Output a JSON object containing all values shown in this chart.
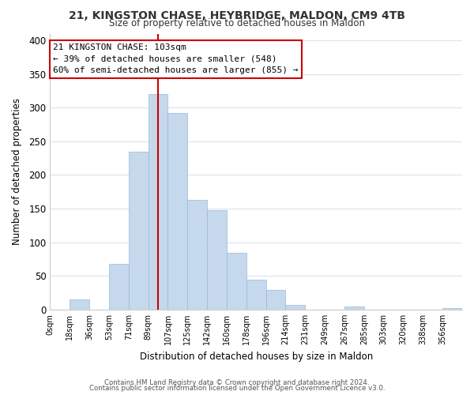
{
  "title1": "21, KINGSTON CHASE, HEYBRIDGE, MALDON, CM9 4TB",
  "title2": "Size of property relative to detached houses in Maldon",
  "xlabel": "Distribution of detached houses by size in Maldon",
  "ylabel": "Number of detached properties",
  "footer1": "Contains HM Land Registry data © Crown copyright and database right 2024.",
  "footer2": "Contains public sector information licensed under the Open Government Licence v3.0.",
  "bar_labels": [
    "0sqm",
    "18sqm",
    "36sqm",
    "53sqm",
    "71sqm",
    "89sqm",
    "107sqm",
    "125sqm",
    "142sqm",
    "160sqm",
    "178sqm",
    "196sqm",
    "214sqm",
    "231sqm",
    "249sqm",
    "267sqm",
    "285sqm",
    "303sqm",
    "320sqm",
    "338sqm",
    "356sqm"
  ],
  "bar_values": [
    0,
    15,
    0,
    68,
    235,
    320,
    292,
    163,
    148,
    84,
    44,
    29,
    7,
    0,
    0,
    5,
    0,
    0,
    0,
    0,
    2
  ],
  "bar_color": "#c5d8ec",
  "bar_edge_color": "#9ab8d4",
  "vline_x": 5.5,
  "vline_color": "#cc0000",
  "annotation_title": "21 KINGSTON CHASE: 103sqm",
  "annotation_line1": "← 39% of detached houses are smaller (548)",
  "annotation_line2": "60% of semi-detached houses are larger (855) →",
  "annotation_box_color": "#ffffff",
  "annotation_box_edge": "#cc0000",
  "ylim": [
    0,
    410
  ],
  "yticks": [
    0,
    50,
    100,
    150,
    200,
    250,
    300,
    350,
    400
  ],
  "background_color": "#ffffff",
  "grid_color": "#d8e4f0"
}
